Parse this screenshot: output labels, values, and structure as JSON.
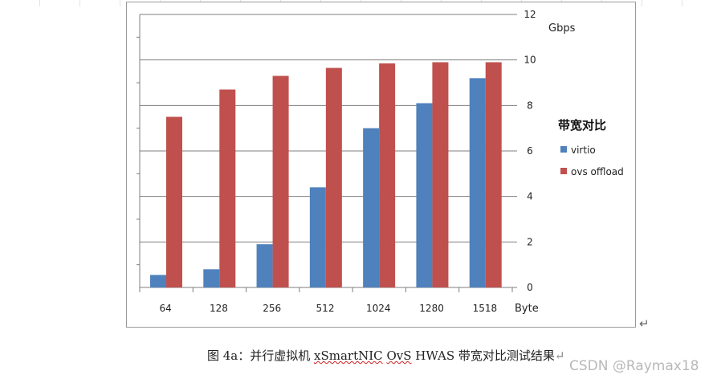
{
  "chart_data": {
    "type": "bar",
    "legend_title": "带宽对比",
    "unit_label": "Gbps",
    "categories": [
      "64",
      "128",
      "256",
      "512",
      "1024",
      "1280",
      "1518"
    ],
    "x_unit_label": "Byte",
    "y_ticks": [
      "0",
      "2",
      "4",
      "6",
      "8",
      "10",
      "12"
    ],
    "ylim": [
      0,
      12
    ],
    "grid": true,
    "legend_position": "right",
    "series": [
      {
        "name": "virtio",
        "color": "#4f81bd",
        "values": [
          0.55,
          0.8,
          1.9,
          4.4,
          7.0,
          8.1,
          9.2
        ]
      },
      {
        "name": "ovs offload",
        "color": "#c0504d",
        "values": [
          7.5,
          8.7,
          9.3,
          9.65,
          9.85,
          9.9,
          9.9
        ]
      }
    ]
  },
  "caption": {
    "prefix": "图 4a：并行虚拟机 ",
    "product": "xSmartNIC",
    "ovs": "OvS",
    "suffix": " HWAS 带宽对比测试结果",
    "mark": "↵"
  },
  "return_mark": "↵",
  "watermark": "CSDN @Raymax18"
}
